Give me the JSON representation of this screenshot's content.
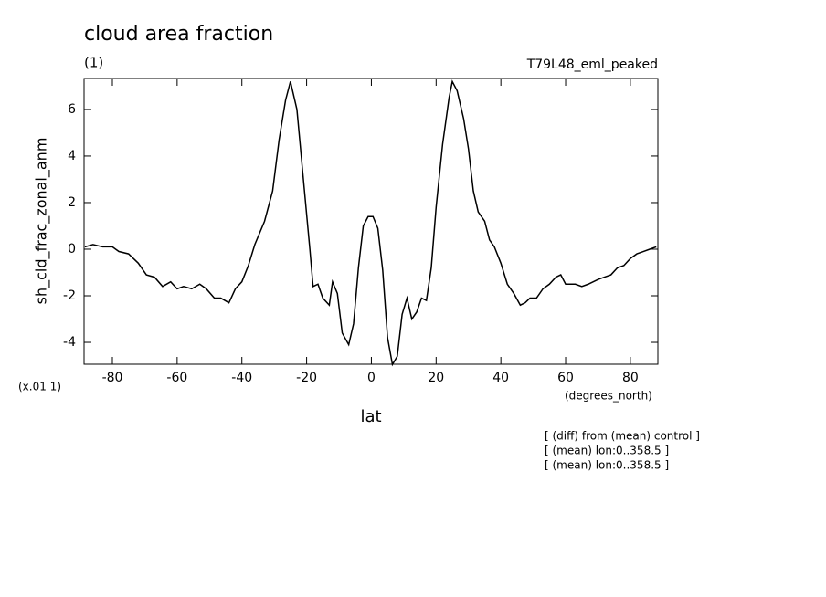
{
  "chart_data": {
    "type": "line",
    "title": "cloud area fraction",
    "subtitle": "(1)",
    "dataset_label": "T79L48_eml_peaked",
    "y_label": "sh_cld_frac_zonal_anm",
    "y_scale_label": "(x.01 1)",
    "x_units": "(degrees_north)",
    "x_label": "lat",
    "notes": [
      "[ (diff) from (mean) control ]",
      "[ (mean) lon:0..358.5 ]",
      "[ (mean) lon:0..358.5 ]"
    ],
    "color": "#000000",
    "x": [
      -88.5,
      -86,
      -83,
      -80,
      -78,
      -75,
      -72,
      -69.5,
      -67,
      -64.5,
      -62,
      -60,
      -58,
      -55.5,
      -53,
      -51,
      -48.5,
      -46.5,
      -44,
      -42,
      -40,
      -38,
      -36,
      -33,
      -30.5,
      -28.5,
      -26.5,
      -25,
      -23,
      -21,
      -19,
      -18,
      -16.5,
      -15,
      -13,
      -12,
      -10.5,
      -9,
      -7,
      -5.5,
      -4,
      -2.5,
      -1,
      0.5,
      2,
      3.5,
      5,
      6.5,
      8,
      9.5,
      11,
      12.5,
      14,
      15.5,
      17,
      18.5,
      20,
      22,
      24,
      25,
      26.5,
      28.5,
      30,
      31.5,
      33,
      35,
      36.5,
      38,
      40,
      42,
      44,
      46,
      47.5,
      49,
      51,
      53,
      55,
      57,
      58.5,
      60,
      63,
      65,
      67,
      70,
      72,
      74,
      76,
      78,
      80,
      82,
      84,
      86,
      88
    ],
    "values": [
      0.1,
      0.2,
      0.1,
      0.1,
      -0.1,
      -0.2,
      -0.6,
      -1.1,
      -1.2,
      -1.6,
      -1.4,
      -1.7,
      -1.6,
      -1.7,
      -1.5,
      -1.7,
      -2.1,
      -2.1,
      -2.3,
      -1.7,
      -1.4,
      -0.7,
      0.2,
      1.2,
      2.5,
      4.7,
      6.4,
      7.2,
      6.0,
      3.0,
      0.0,
      -1.6,
      -1.5,
      -2.1,
      -2.4,
      -1.4,
      -1.9,
      -3.6,
      -4.1,
      -3.2,
      -0.8,
      1.0,
      1.4,
      1.4,
      0.9,
      -0.9,
      -3.8,
      -4.95,
      -4.6,
      -2.8,
      -2.1,
      -3.0,
      -2.7,
      -2.1,
      -2.2,
      -0.8,
      1.8,
      4.5,
      6.5,
      7.2,
      6.8,
      5.6,
      4.3,
      2.5,
      1.6,
      1.2,
      0.4,
      0.1,
      -0.6,
      -1.5,
      -1.9,
      -2.4,
      -2.3,
      -2.1,
      -2.1,
      -1.7,
      -1.5,
      -1.2,
      -1.1,
      -1.5,
      -1.5,
      -1.6,
      -1.5,
      -1.3,
      -1.2,
      -1.1,
      -0.8,
      -0.7,
      -0.4,
      -0.2,
      -0.1,
      0.0,
      0.1
    ],
    "xlim": [
      -88.75,
      88.5
    ],
    "ylim": [
      -4.94,
      7.33
    ],
    "xticks": [
      -80,
      -60,
      -40,
      -20,
      0,
      20,
      40,
      60,
      80
    ],
    "yticks": [
      -4,
      -2,
      0,
      2,
      4,
      6
    ]
  }
}
